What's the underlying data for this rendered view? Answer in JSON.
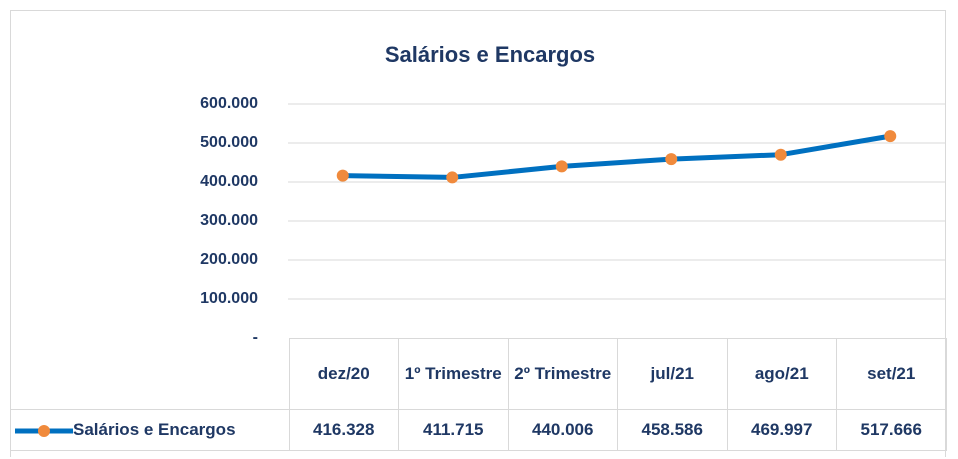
{
  "chart_data": {
    "type": "line",
    "title": "Salários e Encargos",
    "categories": [
      "dez/20",
      "1º Trimestre",
      "2º Trimestre",
      "jul/21",
      "ago/21",
      "set/21"
    ],
    "series": [
      {
        "name": "Salários e Encargos",
        "color": "#0070c0",
        "marker_color": "#f08a3c",
        "values": [
          416328,
          411715,
          440006,
          458586,
          469997,
          517666
        ],
        "value_labels": [
          "416.328",
          "411.715",
          "440.006",
          "458.586",
          "469.997",
          "517.666"
        ]
      }
    ],
    "ylim": [
      0,
      600000
    ],
    "yticks": [
      {
        "value": 0,
        "label": "-"
      },
      {
        "value": 100000,
        "label": "100.000"
      },
      {
        "value": 200000,
        "label": "200.000"
      },
      {
        "value": 300000,
        "label": "300.000"
      },
      {
        "value": 400000,
        "label": "400.000"
      },
      {
        "value": 500000,
        "label": "500.000"
      },
      {
        "value": 600000,
        "label": "600.000"
      }
    ],
    "grid": true
  }
}
